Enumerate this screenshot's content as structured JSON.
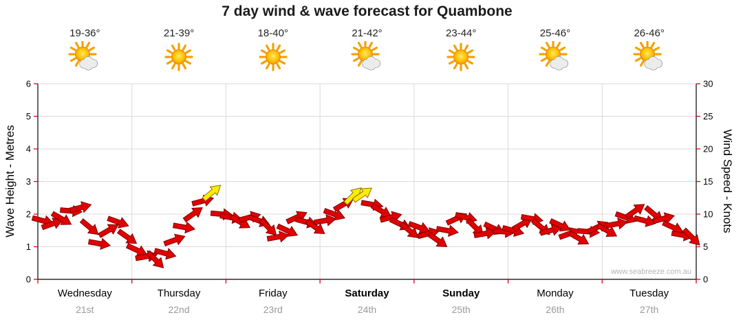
{
  "title": "7 day wind & wave forecast for Quambone",
  "watermark": "www.seabreeze.com.au",
  "axes": {
    "left_label": "Wave Height - Metres",
    "right_label": "Wind Speed - Knots",
    "left_ticks": [
      "0",
      "1",
      "2",
      "3",
      "4",
      "5",
      "6"
    ],
    "right_ticks": [
      "0",
      "5",
      "10",
      "15",
      "20",
      "25",
      "30"
    ]
  },
  "days": [
    {
      "name": "Wednesday",
      "date": "21st",
      "temp": "19-36°",
      "icon": "sun-cloud",
      "bold": false
    },
    {
      "name": "Thursday",
      "date": "22nd",
      "temp": "21-39°",
      "icon": "sun",
      "bold": false
    },
    {
      "name": "Friday",
      "date": "23rd",
      "temp": "18-40°",
      "icon": "sun",
      "bold": false
    },
    {
      "name": "Saturday",
      "date": "24th",
      "temp": "21-42°",
      "icon": "sun-cloud",
      "bold": true
    },
    {
      "name": "Sunday",
      "date": "25th",
      "temp": "23-44°",
      "icon": "sun",
      "bold": true
    },
    {
      "name": "Monday",
      "date": "26th",
      "temp": "25-46°",
      "icon": "sun-cloud",
      "bold": false
    },
    {
      "name": "Tuesday",
      "date": "27th",
      "temp": "26-46°",
      "icon": "sun-cloud",
      "bold": false
    }
  ],
  "colors": {
    "arrow_red": "#e10000",
    "arrow_red_stroke": "#7e0000",
    "arrow_yellow": "#ffec00",
    "arrow_yellow_stroke": "#8a7000",
    "tick": "#e00000",
    "grid": "#d9d9d9",
    "axis": "#000000",
    "watermark_gray": "#b5b5b5"
  },
  "chart_data": {
    "type": "scatter",
    "marker": "wind-arrow",
    "title": "7 day wind & wave forecast for Quambone",
    "ylabel_left": "Wave Height - Metres",
    "ylabel_right": "Wind Speed - Knots",
    "ylim_metres": [
      0,
      6
    ],
    "ylim_knots": [
      0,
      30
    ],
    "knots_per_metre": 5,
    "grid": true,
    "points_per_day": 10,
    "day_categories": [
      "Wednesday 21st",
      "Thursday 22nd",
      "Friday 23rd",
      "Saturday 24th",
      "Sunday 25th",
      "Monday 26th",
      "Tuesday 27th"
    ],
    "wind_knots": [
      9,
      8.5,
      9.3,
      10.5,
      11,
      8,
      5.5,
      7.5,
      8.8,
      6.5,
      4.5,
      3.5,
      3,
      4,
      6,
      8,
      10,
      12,
      13.3,
      10,
      9.5,
      8.8,
      9.5,
      9,
      8,
      6.5,
      7.5,
      9.5,
      8.8,
      8,
      9,
      10,
      11.5,
      12.8,
      13,
      11.5,
      10.5,
      9.5,
      8.5,
      7.5,
      8,
      7,
      6,
      7.5,
      9.3,
      9.5,
      8,
      7,
      7.8,
      7.3,
      7.5,
      8.5,
      9.3,
      8,
      7.5,
      8.3,
      7,
      6.3,
      7.3,
      8,
      7.5,
      8.5,
      9.5,
      10.5,
      9,
      10,
      9.3,
      8,
      6.8,
      6.5
    ],
    "directions_deg": [
      15,
      -20,
      30,
      5,
      -15,
      40,
      10,
      -30,
      20,
      35,
      25,
      -10,
      45,
      15,
      -20,
      10,
      -35,
      -15,
      -40,
      5,
      10,
      30,
      -15,
      20,
      45,
      -10,
      25,
      -25,
      15,
      35,
      -10,
      20,
      -30,
      -45,
      -35,
      10,
      30,
      -15,
      25,
      40,
      20,
      -15,
      35,
      10,
      -25,
      15,
      45,
      -10,
      25,
      5,
      15,
      -30,
      10,
      40,
      -15,
      25,
      -20,
      30,
      5,
      -25,
      30,
      -10,
      20,
      -35,
      15,
      40,
      -15,
      25,
      10,
      45
    ],
    "yellow_indices": [
      18,
      33,
      34
    ]
  }
}
